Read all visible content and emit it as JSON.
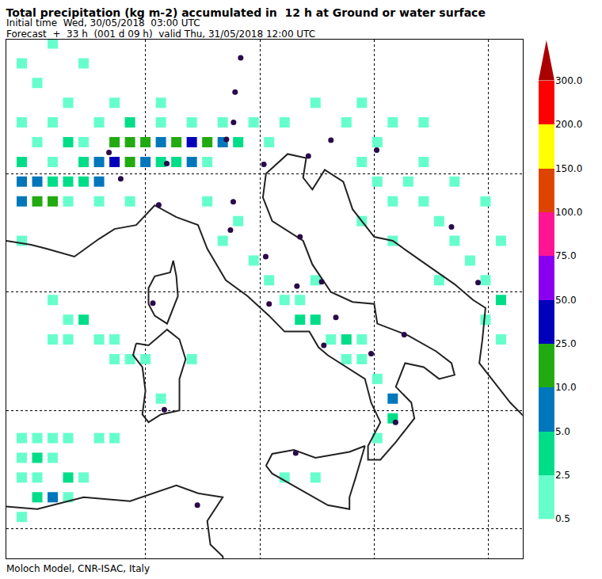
{
  "chart_data": {
    "type": "map",
    "title": "Total precipitation (kg m-2) accumulated in  12 h at Ground or water surface",
    "subtitle_lines": [
      "Initial time  Wed, 30/05/2018  03:00 UTC",
      "Forecast  +  33 h  (001 d 09 h)  valid Thu, 31/05/2018 12:00 UTC"
    ],
    "footer": "Moloch Model, CNR-ISAC, Italy",
    "xlim": [
      4.0,
      20.7
    ],
    "ylim": [
      35.45,
      48.6
    ],
    "xticks": [
      8.5,
      12.2,
      15.9,
      19.6
    ],
    "yticks": [
      36.2,
      39.2,
      42.2,
      45.2
    ],
    "grid": true,
    "tick_labels": false,
    "colorbar": {
      "ticks": [
        0.5,
        2.5,
        {
          "value": 5,
          "label": "5.0"
        },
        {
          "value": 10,
          "label": "10.0"
        },
        {
          "value": 25,
          "label": "25.0"
        },
        {
          "value": 50,
          "label": "50.0"
        },
        {
          "value": 75,
          "label": "75.0"
        },
        {
          "value": 100,
          "label": "100.0"
        },
        {
          "value": 150,
          "label": "150.0"
        },
        {
          "value": 200,
          "label": "200.0"
        },
        {
          "value": 300,
          "label": "300.0"
        }
      ],
      "colors": [
        "#66ffcc",
        "#00dd88",
        "#0077bb",
        "#22aa11",
        "#0000bb",
        "#8800ee",
        "#ff1493",
        "#dd4400",
        "#ffff00",
        "#ff0000",
        "#aa0000"
      ]
    },
    "precipitation_cells": [
      [
        6.5,
        45.0,
        3
      ],
      [
        7.0,
        45.0,
        5
      ],
      [
        7.0,
        45.5,
        8
      ],
      [
        7.5,
        45.5,
        35
      ],
      [
        7.5,
        46.0,
        15
      ],
      [
        8.0,
        45.5,
        20
      ],
      [
        8.0,
        46.0,
        10
      ],
      [
        8.5,
        45.5,
        8
      ],
      [
        8.5,
        46.0,
        12
      ],
      [
        9.0,
        45.5,
        4
      ],
      [
        9.0,
        46.0,
        8
      ],
      [
        9.5,
        46.0,
        12
      ],
      [
        9.5,
        45.5,
        3
      ],
      [
        10.0,
        46.0,
        25
      ],
      [
        10.0,
        45.5,
        5
      ],
      [
        10.5,
        46.0,
        15
      ],
      [
        10.5,
        45.5,
        2
      ],
      [
        11.0,
        46.0,
        8
      ],
      [
        11.0,
        46.5,
        2
      ],
      [
        11.5,
        46.0,
        3
      ],
      [
        12.0,
        46.5,
        1.5
      ],
      [
        12.5,
        46.0,
        1
      ],
      [
        13.0,
        46.5,
        1
      ],
      [
        7.0,
        44.5,
        1.5
      ],
      [
        8.0,
        44.5,
        1
      ],
      [
        6.5,
        45.5,
        4
      ],
      [
        6.5,
        46.0,
        2
      ],
      [
        7.0,
        46.5,
        2
      ],
      [
        8.0,
        46.5,
        3
      ],
      [
        9.0,
        46.5,
        2
      ],
      [
        10.0,
        46.5,
        1.5
      ],
      [
        6.0,
        46.0,
        3
      ],
      [
        5.5,
        46.5,
        2
      ],
      [
        6.0,
        47.0,
        1
      ],
      [
        7.5,
        47.0,
        1.5
      ],
      [
        9.0,
        47.0,
        1
      ],
      [
        10.5,
        44.5,
        1
      ],
      [
        11.5,
        44.0,
        1
      ],
      [
        4.5,
        44.5,
        6
      ],
      [
        5.0,
        44.5,
        12
      ],
      [
        5.5,
        44.5,
        15
      ],
      [
        4.5,
        45.0,
        5
      ],
      [
        5.0,
        45.0,
        8
      ],
      [
        5.5,
        45.0,
        4
      ],
      [
        6.0,
        45.0,
        3
      ],
      [
        4.5,
        45.5,
        3
      ],
      [
        5.0,
        46.0,
        2
      ],
      [
        4.5,
        46.5,
        1.5
      ],
      [
        5.5,
        45.5,
        2
      ],
      [
        6.0,
        44.5,
        1.5
      ],
      [
        4.5,
        43.5,
        1
      ],
      [
        5.0,
        47.5,
        1
      ],
      [
        4.5,
        48.0,
        1
      ],
      [
        5.5,
        48.5,
        1
      ],
      [
        6.5,
        48.0,
        1
      ],
      [
        11.0,
        43.5,
        1
      ],
      [
        12.0,
        43.0,
        1
      ],
      [
        12.5,
        42.5,
        1
      ],
      [
        13.0,
        42.0,
        1.5
      ],
      [
        13.5,
        42.0,
        1
      ],
      [
        13.5,
        41.5,
        3
      ],
      [
        14.0,
        41.5,
        4
      ],
      [
        14.5,
        41.0,
        2
      ],
      [
        15.0,
        41.0,
        3
      ],
      [
        15.0,
        40.5,
        2
      ],
      [
        15.5,
        41.0,
        1.5
      ],
      [
        15.5,
        40.5,
        1
      ],
      [
        16.0,
        40.0,
        1
      ],
      [
        16.5,
        39.5,
        6
      ],
      [
        16.5,
        39.0,
        3
      ],
      [
        16.0,
        38.5,
        1
      ],
      [
        14.0,
        37.5,
        1
      ],
      [
        13.0,
        37.5,
        0.8
      ],
      [
        14.0,
        42.5,
        1
      ],
      [
        15.5,
        45.5,
        1
      ],
      [
        16.0,
        45.0,
        1.5
      ],
      [
        16.5,
        44.5,
        1
      ],
      [
        17.0,
        45.0,
        2
      ],
      [
        17.5,
        44.5,
        1
      ],
      [
        18.0,
        44.0,
        1.5
      ],
      [
        18.5,
        43.5,
        1
      ],
      [
        19.0,
        43.0,
        2
      ],
      [
        19.5,
        42.5,
        1
      ],
      [
        20.0,
        42.0,
        3
      ],
      [
        19.5,
        41.5,
        1
      ],
      [
        20.0,
        41.0,
        2
      ],
      [
        16.0,
        46.0,
        1
      ],
      [
        17.5,
        45.5,
        1
      ],
      [
        18.5,
        45.0,
        1
      ],
      [
        15.0,
        46.5,
        1
      ],
      [
        16.5,
        46.5,
        1
      ],
      [
        14.0,
        47.0,
        1
      ],
      [
        15.5,
        47.0,
        1
      ],
      [
        19.5,
        44.5,
        1
      ],
      [
        20.0,
        43.5,
        1.5
      ],
      [
        18.0,
        42.5,
        1
      ],
      [
        16.5,
        43.5,
        1
      ],
      [
        17.5,
        46.5,
        1
      ],
      [
        15.5,
        44.0,
        1
      ],
      [
        5.5,
        42.0,
        1
      ],
      [
        6.0,
        41.5,
        1
      ],
      [
        6.5,
        41.5,
        3
      ],
      [
        7.0,
        41.0,
        1.5
      ],
      [
        7.5,
        41.0,
        1
      ],
      [
        6.0,
        41.0,
        1
      ],
      [
        5.5,
        41.0,
        1
      ],
      [
        7.5,
        40.5,
        1
      ],
      [
        8.0,
        40.5,
        0.8
      ],
      [
        8.5,
        40.5,
        1
      ],
      [
        4.5,
        38.5,
        1
      ],
      [
        5.0,
        38.5,
        1
      ],
      [
        5.5,
        38.5,
        1.5
      ],
      [
        6.0,
        38.5,
        1
      ],
      [
        7.0,
        38.5,
        1
      ],
      [
        4.5,
        38.0,
        1
      ],
      [
        5.0,
        38.0,
        3
      ],
      [
        5.5,
        38.0,
        1
      ],
      [
        4.5,
        37.5,
        1
      ],
      [
        5.0,
        37.5,
        2
      ],
      [
        5.5,
        37.0,
        7
      ],
      [
        6.0,
        37.5,
        3
      ],
      [
        5.0,
        37.0,
        3
      ],
      [
        6.5,
        37.5,
        1
      ],
      [
        6.0,
        37.0,
        1.5
      ],
      [
        4.5,
        36.5,
        1
      ],
      [
        7.5,
        38.5,
        1
      ],
      [
        10.0,
        40.5,
        1.5
      ],
      [
        9.0,
        39.5,
        0.8
      ]
    ],
    "coastlines": [
      [
        [
          3.5,
          43.3
        ],
        [
          4.0,
          43.5
        ],
        [
          4.8,
          43.4
        ],
        [
          5.3,
          43.3
        ],
        [
          6.2,
          43.1
        ],
        [
          7.0,
          43.55
        ],
        [
          7.5,
          43.8
        ],
        [
          8.2,
          43.9
        ],
        [
          8.8,
          44.4
        ],
        [
          9.5,
          44.1
        ],
        [
          10.2,
          43.9
        ],
        [
          10.5,
          43.3
        ],
        [
          11.1,
          42.5
        ],
        [
          11.8,
          42.1
        ],
        [
          12.5,
          41.6
        ],
        [
          13.0,
          41.2
        ],
        [
          13.8,
          41.2
        ],
        [
          14.1,
          40.8
        ],
        [
          14.4,
          40.6
        ],
        [
          15.0,
          40.3
        ],
        [
          15.6,
          40.0
        ],
        [
          15.8,
          39.4
        ],
        [
          16.1,
          38.9
        ],
        [
          15.7,
          38.3
        ],
        [
          15.7,
          37.95
        ],
        [
          16.1,
          37.95
        ],
        [
          16.6,
          38.4
        ],
        [
          17.2,
          39.0
        ],
        [
          17.1,
          39.4
        ],
        [
          16.6,
          39.8
        ],
        [
          16.9,
          40.4
        ],
        [
          17.5,
          40.3
        ],
        [
          18.0,
          40.0
        ],
        [
          18.5,
          40.1
        ],
        [
          18.4,
          40.4
        ],
        [
          17.9,
          40.7
        ],
        [
          17.0,
          41.1
        ],
        [
          16.0,
          41.4
        ],
        [
          15.9,
          41.9
        ],
        [
          15.2,
          41.95
        ],
        [
          14.5,
          42.2
        ],
        [
          13.9,
          42.9
        ],
        [
          13.6,
          43.5
        ],
        [
          12.6,
          44.0
        ],
        [
          12.3,
          44.6
        ],
        [
          12.4,
          45.2
        ],
        [
          13.1,
          45.7
        ],
        [
          13.7,
          45.6
        ],
        [
          13.6,
          45.1
        ],
        [
          13.9,
          44.8
        ],
        [
          14.3,
          45.3
        ],
        [
          14.9,
          45.0
        ],
        [
          15.2,
          44.3
        ],
        [
          15.9,
          43.6
        ],
        [
          16.5,
          43.5
        ],
        [
          17.4,
          43.0
        ],
        [
          18.5,
          42.4
        ],
        [
          19.1,
          42.0
        ],
        [
          19.5,
          41.8
        ],
        [
          19.4,
          41.0
        ],
        [
          19.3,
          40.4
        ],
        [
          20.0,
          39.7
        ],
        [
          20.3,
          39.4
        ],
        [
          20.8,
          39.0
        ]
      ],
      [
        [
          12.4,
          37.8
        ],
        [
          12.6,
          38.1
        ],
        [
          13.3,
          38.2
        ],
        [
          14.0,
          38.0
        ],
        [
          15.1,
          38.15
        ],
        [
          15.6,
          38.3
        ],
        [
          15.3,
          37.5
        ],
        [
          15.1,
          37.0
        ],
        [
          15.1,
          36.7
        ],
        [
          14.4,
          36.8
        ],
        [
          13.5,
          37.2
        ],
        [
          12.6,
          37.6
        ],
        [
          12.4,
          37.8
        ]
      ],
      [
        [
          8.2,
          40.9
        ],
        [
          8.6,
          40.85
        ],
        [
          9.2,
          41.25
        ],
        [
          9.6,
          41.0
        ],
        [
          9.8,
          40.5
        ],
        [
          9.6,
          40.0
        ],
        [
          9.6,
          39.2
        ],
        [
          9.0,
          39.1
        ],
        [
          8.6,
          38.9
        ],
        [
          8.4,
          39.1
        ],
        [
          8.5,
          39.7
        ],
        [
          8.4,
          40.3
        ],
        [
          8.1,
          40.6
        ],
        [
          8.2,
          40.9
        ]
      ],
      [
        [
          9.4,
          43.0
        ],
        [
          9.5,
          42.6
        ],
        [
          9.55,
          42.1
        ],
        [
          9.2,
          41.4
        ],
        [
          8.8,
          41.6
        ],
        [
          8.6,
          41.9
        ],
        [
          8.6,
          42.3
        ],
        [
          8.8,
          42.6
        ],
        [
          9.3,
          42.7
        ],
        [
          9.4,
          43.0
        ]
      ],
      [
        [
          3.5,
          36.8
        ],
        [
          5.0,
          36.7
        ],
        [
          6.5,
          37.0
        ],
        [
          8.0,
          36.9
        ],
        [
          9.5,
          37.3
        ],
        [
          10.2,
          37.1
        ],
        [
          11.0,
          37.0
        ],
        [
          10.5,
          36.4
        ],
        [
          10.6,
          35.8
        ],
        [
          11.0,
          35.5
        ],
        [
          11.1,
          35.0
        ]
      ]
    ],
    "cities": {
      "color": "#2a0a4a",
      "points": [
        [
          7.7,
          45.07
        ],
        [
          9.19,
          45.46
        ],
        [
          8.93,
          44.41
        ],
        [
          12.33,
          45.44
        ],
        [
          11.34,
          44.49
        ],
        [
          11.25,
          43.77
        ],
        [
          12.5,
          41.9
        ],
        [
          14.27,
          40.85
        ],
        [
          16.87,
          41.12
        ],
        [
          13.36,
          38.12
        ],
        [
          9.11,
          39.22
        ],
        [
          13.77,
          45.65
        ],
        [
          13.5,
          43.6
        ],
        [
          14.2,
          42.46
        ],
        [
          15.8,
          40.64
        ],
        [
          16.59,
          38.9
        ],
        [
          12.39,
          43.1
        ],
        [
          13.4,
          42.35
        ],
        [
          11.12,
          46.07
        ],
        [
          11.35,
          46.5
        ],
        [
          7.32,
          45.74
        ],
        [
          14.66,
          41.56
        ],
        [
          14.5,
          46.05
        ],
        [
          15.98,
          45.8
        ],
        [
          18.4,
          43.85
        ],
        [
          10.18,
          36.8
        ],
        [
          8.74,
          41.92
        ],
        [
          11.4,
          47.27
        ],
        [
          11.58,
          48.14
        ],
        [
          19.26,
          42.44
        ]
      ]
    }
  }
}
